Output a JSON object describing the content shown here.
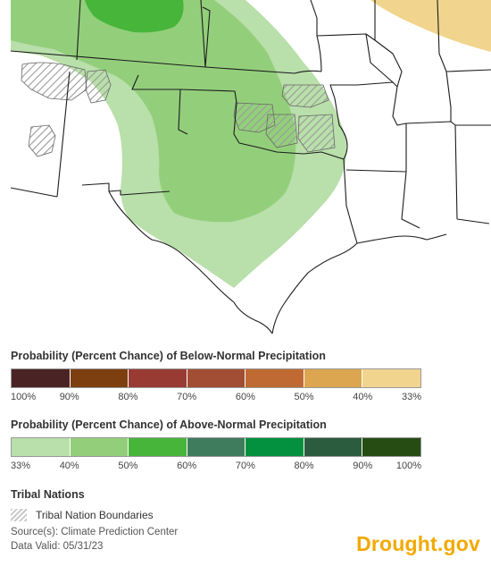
{
  "colors": {
    "below": [
      "#4a2424",
      "#7d3f10",
      "#983c33",
      "#a24e34",
      "#bf6a32",
      "#dba64f",
      "#f1d48d"
    ],
    "above": [
      "#b9dfaa",
      "#93cf7b",
      "#47b53a",
      "#3f7c5e",
      "#03913f",
      "#2c5c3e",
      "#264c14"
    ],
    "map_land": "#ffffff",
    "map_border": "#1b1b1b",
    "green_33": "#b9dfaa",
    "green_40": "#93cf7b",
    "green_50": "#47b53a",
    "tan_33": "#f1d48d"
  },
  "legend_below": {
    "title": "Probability (Percent Chance) of Below-Normal Precipitation",
    "labels": [
      "100%",
      "90%",
      "80%",
      "70%",
      "60%",
      "50%",
      "40%",
      "33%"
    ]
  },
  "legend_above": {
    "title": "Probability (Percent Chance) of Above-Normal Precipitation",
    "labels": [
      "33%",
      "40%",
      "50%",
      "60%",
      "70%",
      "80%",
      "90%",
      "100%"
    ]
  },
  "tribal": {
    "title": "Tribal Nations",
    "label": "Tribal Nation Boundaries"
  },
  "source": "Source(s): Climate Prediction Center",
  "valid": "Data Valid: 05/31/23",
  "logo": "Drought.gov"
}
